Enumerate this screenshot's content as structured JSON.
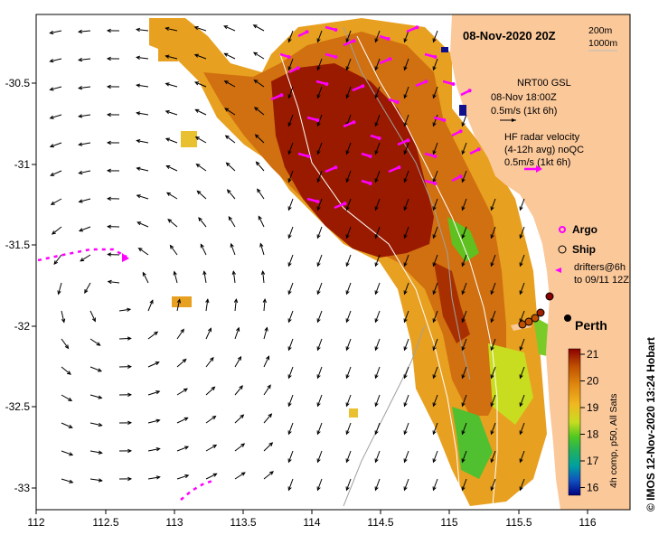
{
  "title": "08-Nov-2020 20Z",
  "isobaths": [
    "200m",
    "1000m"
  ],
  "model_info": {
    "line1": "NRT00 GSL",
    "line2": "08-Nov 18:00Z",
    "line3": "0.5m/s (1kt 6h)"
  },
  "radar_info": {
    "line1": "HF radar velocity",
    "line2": "(4-12h avg) noQC",
    "line3": "0.5m/s (1kt 6h)"
  },
  "legend": {
    "argo": "Argo",
    "ship": "Ship",
    "drifters_line1": "drifters@6h",
    "drifters_line2": "to 09/11 12Z"
  },
  "city": "Perth",
  "colorbar": {
    "ticks": [
      "21",
      "20",
      "19",
      "18",
      "17",
      "16"
    ],
    "label": "4h comp, p50, All Sats",
    "colors": [
      "#8b0000",
      "#c05000",
      "#e08a10",
      "#f0b820",
      "#c8dc20",
      "#50c820",
      "#20b060",
      "#00a0a0",
      "#1050c0",
      "#000080"
    ]
  },
  "credit": "© IMOS 12-Nov-2020 13:24 Hobart",
  "axes": {
    "x_ticks": [
      "112",
      "112.5",
      "113",
      "113.5",
      "114",
      "114.5",
      "115",
      "115.5",
      "116"
    ],
    "y_ticks": [
      "-30.5",
      "-31",
      "-31.5",
      "-32",
      "-32.5",
      "-33"
    ]
  },
  "colors": {
    "land": "#fbc89a",
    "arrow": "#000000",
    "drifter": "#ff00ff",
    "argo": "#ff00ff"
  }
}
